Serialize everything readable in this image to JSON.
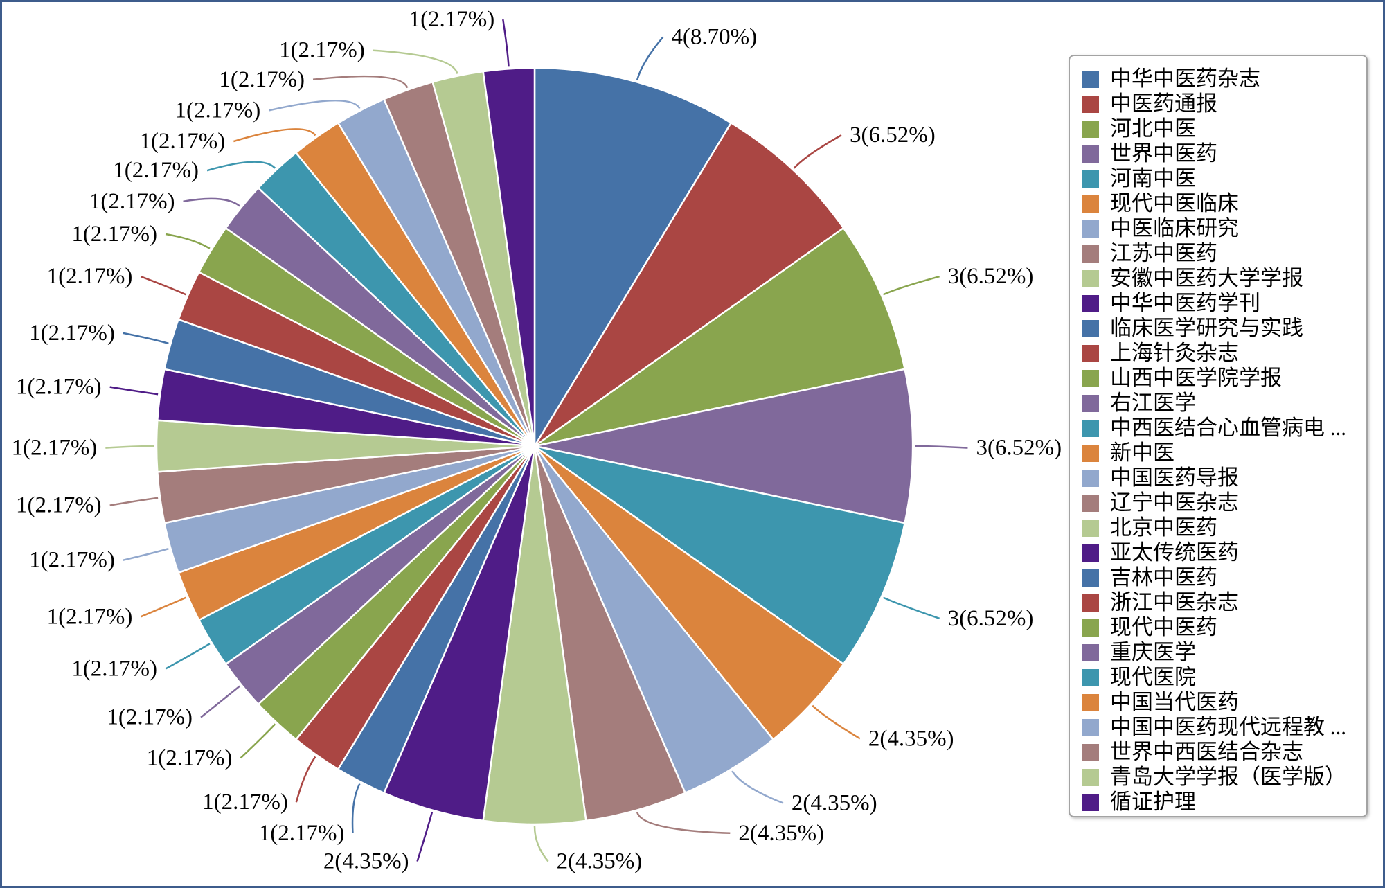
{
  "chart_data": {
    "type": "pie",
    "title": "",
    "categories": [
      "中华中医药杂志",
      "中医药通报",
      "河北中医",
      "世界中医药",
      "河南中医",
      "现代中医临床",
      "中医临床研究",
      "江苏中医药",
      "安徽中医药大学学报",
      "中华中医药学刊",
      "临床医学研究与实践",
      "上海针灸杂志",
      "山西中医学院学报",
      "右江医学",
      "中西医结合心血管病电 ...",
      "新中医",
      "中国医药导报",
      "辽宁中医杂志",
      "北京中医药",
      "亚太传统医药",
      "吉林中医药",
      "浙江中医杂志",
      "现代中医药",
      "重庆医学",
      "现代医院",
      "中国当代医药",
      "中国中医药现代远程教 ...",
      "世界中西医结合杂志",
      "青岛大学学报（医学版）",
      "循证护理"
    ],
    "values": [
      4,
      3,
      3,
      3,
      3,
      2,
      2,
      2,
      2,
      2,
      1,
      1,
      1,
      1,
      1,
      1,
      1,
      1,
      1,
      1,
      1,
      1,
      1,
      1,
      1,
      1,
      1,
      1,
      1,
      1
    ],
    "labels": [
      "4(8.70%)",
      "3(6.52%)",
      "3(6.52%)",
      "3(6.52%)",
      "3(6.52%)",
      "2(4.35%)",
      "2(4.35%)",
      "2(4.35%)",
      "2(4.35%)",
      "2(4.35%)",
      "1(2.17%)",
      "1(2.17%)",
      "1(2.17%)",
      "1(2.17%)",
      "1(2.17%)",
      "1(2.17%)",
      "1(2.17%)",
      "1(2.17%)",
      "1(2.17%)",
      "1(2.17%)",
      "1(2.17%)",
      "1(2.17%)",
      "1(2.17%)",
      "1(2.17%)",
      "1(2.17%)",
      "1(2.17%)",
      "1(2.17%)",
      "1(2.17%)",
      "1(2.17%)",
      "1(2.17%)"
    ],
    "colors": [
      "#4572A7",
      "#AA4643",
      "#89A54E",
      "#80699B",
      "#3D96AE",
      "#DB843D",
      "#92A8CD",
      "#A47D7C",
      "#B5CA92",
      "#4F1C87"
    ],
    "legend_position": "right"
  }
}
